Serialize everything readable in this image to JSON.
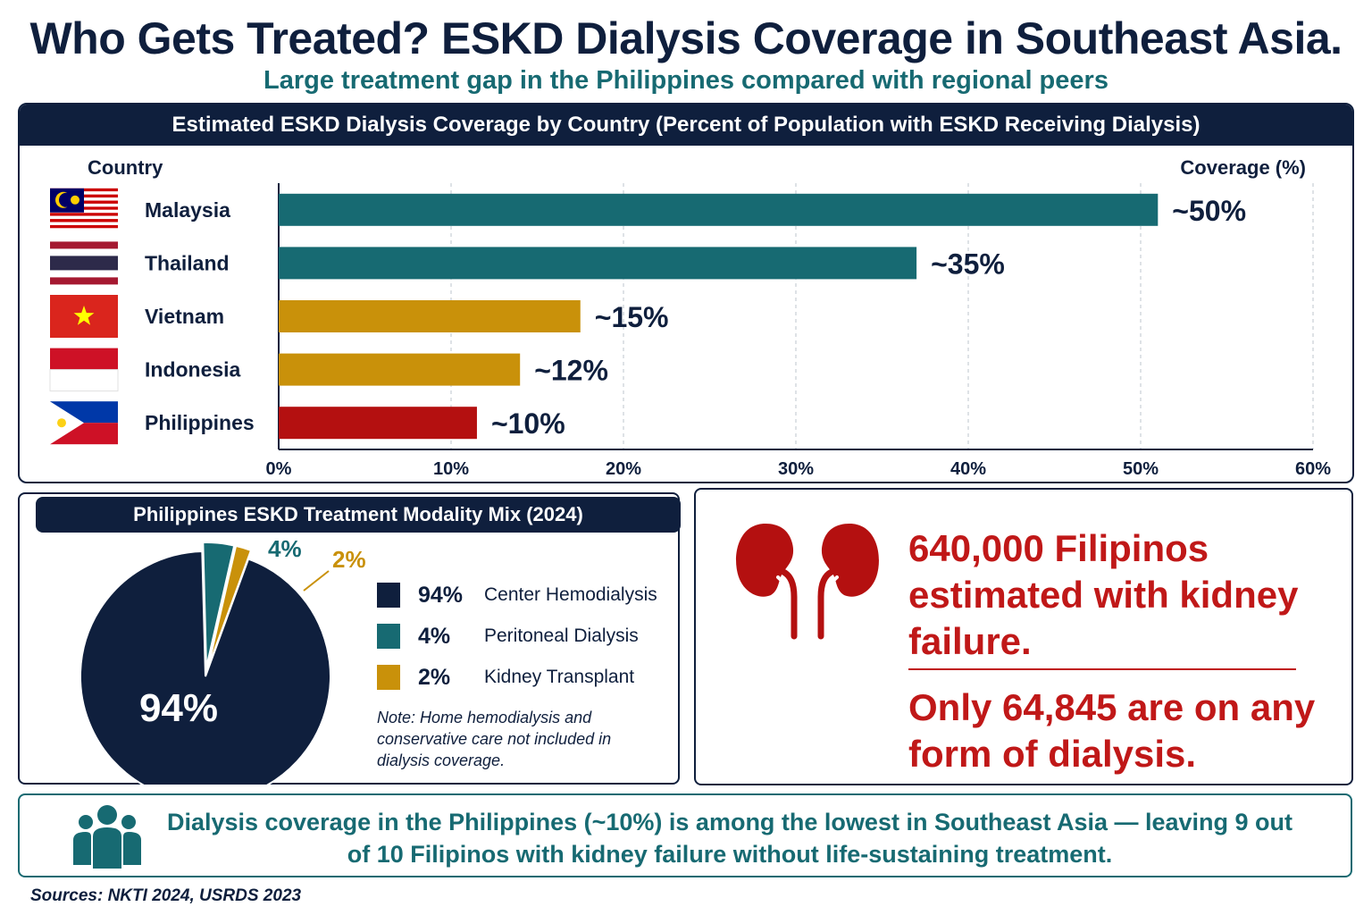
{
  "title": "Who Gets Treated? ESKD Dialysis Coverage in Southeast Asia.",
  "subtitle": "Large treatment gap in the Philippines compared with regional peers",
  "bar_panel": {
    "heading": "Estimated ESKD Dialysis Coverage by Country (Percent of Population with ESKD Receiving Dialysis)",
    "country_header": "Country",
    "coverage_header": "Coverage (%)"
  },
  "pie_panel": {
    "heading": "Philippines ESKD Treatment Modality Mix (2024)",
    "note": "Note:  Home hemodialysis and conservative care not included in dialysis coverage."
  },
  "stat_panel": {
    "line1": "640,000 Filipinos estimated with kidney failure.",
    "line2": "Only 64,845 are on any form of dialysis."
  },
  "callout": {
    "text": "Dialysis coverage in the Philippines (~10%) is among the lowest in Southeast Asia — leaving 9 out of 10 Filipinos with kidney failure without life-sustaining treatment."
  },
  "sources": "Sources:  NKTI 2024, USRDS 2023",
  "colors": {
    "navy": "#0f1f3d",
    "teal": "#176a72",
    "gold": "#c9910a",
    "red": "#b41010"
  },
  "chart_data": [
    {
      "type": "bar",
      "orientation": "horizontal",
      "categories": [
        "Malaysia",
        "Thailand",
        "Vietnam",
        "Indonesia",
        "Philippines"
      ],
      "values": [
        51,
        37,
        17.5,
        14,
        11.5
      ],
      "data_labels": [
        "~50%",
        "~35%",
        "~15%",
        "~12%",
        "~10%"
      ],
      "bar_colors": [
        "#176a72",
        "#176a72",
        "#c9910a",
        "#c9910a",
        "#b41010"
      ],
      "xlim": [
        0,
        60
      ],
      "x_ticks": [
        "0%",
        "10%",
        "20%",
        "30%",
        "40%",
        "50%",
        "60%"
      ],
      "grid": true
    },
    {
      "type": "pie",
      "slices": [
        {
          "label": "Center Hemodialysis",
          "value": 94,
          "display": "94%",
          "color": "#0f1f3d"
        },
        {
          "label": "Peritoneal Dialysis",
          "value": 4,
          "display": "4%",
          "color": "#176a72"
        },
        {
          "label": "Kidney Transplant",
          "value": 2,
          "display": "2%",
          "color": "#c9910a"
        }
      ]
    }
  ]
}
